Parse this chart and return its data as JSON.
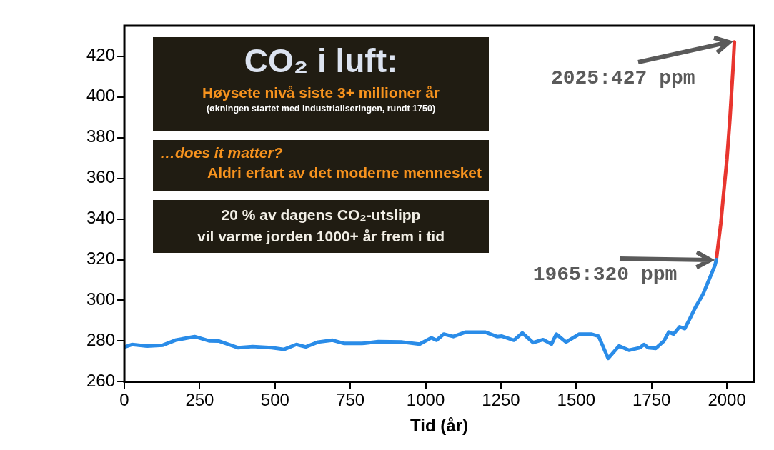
{
  "chart_data": {
    "type": "line",
    "title": "CO₂ i luft:",
    "subtitle": "Høysete nivå siste 3+ millioner år",
    "xlabel": "Tid (år)",
    "annotations": [
      "(økningen startet med industrialiseringen, rundt 1750)",
      "…does it matter?",
      "Aldri erfart av det moderne mennesket",
      "20 % av dagens CO₂-utslipp\nvil varme jorden 1000+ år frem i tid",
      {
        "text": "2025:427 ppm",
        "x": 2025,
        "y": 427
      },
      {
        "text": "1965:320 ppm",
        "x": 1965,
        "y": 320
      }
    ],
    "xlim": [
      0,
      2090
    ],
    "xticks": [
      0,
      250,
      500,
      750,
      1000,
      1250,
      1500,
      1750,
      2000
    ],
    "ylim": [
      260,
      435
    ],
    "yticks": [
      260,
      280,
      300,
      320,
      340,
      360,
      380,
      400,
      420
    ],
    "series": [
      {
        "color": "#2a8ce8",
        "x": [
          0,
          25,
          75,
          128,
          169,
          233,
          281,
          313,
          378,
          426,
          489,
          530,
          571,
          602,
          643,
          691,
          730,
          788,
          843,
          923,
          980,
          1019,
          1036,
          1060,
          1092,
          1133,
          1197,
          1237,
          1253,
          1293,
          1321,
          1357,
          1390,
          1418,
          1434,
          1466,
          1510,
          1550,
          1574,
          1606,
          1642,
          1675,
          1711,
          1725,
          1739,
          1764,
          1791,
          1807,
          1823,
          1843,
          1860,
          1875,
          1896,
          1920,
          1944,
          1960,
          1965
        ],
        "values": [
          277,
          278.3,
          277.5,
          278,
          280.4,
          282.2,
          280.1,
          280,
          276.7,
          277.3,
          276.7,
          275.9,
          278.3,
          277.1,
          279.5,
          280.4,
          278.8,
          278.8,
          279.7,
          279.5,
          278.5,
          281.6,
          280.4,
          283.4,
          282.2,
          284.4,
          284.4,
          282.2,
          282.4,
          280.4,
          284,
          279.2,
          280.7,
          278.5,
          283.4,
          279.5,
          283.4,
          283.4,
          282.4,
          271.5,
          277.6,
          275.5,
          276.7,
          278.3,
          276.7,
          276.4,
          280,
          284.4,
          283.4,
          287,
          286.1,
          290.4,
          296.7,
          302.8,
          311.3,
          317,
          320
        ]
      },
      {
        "color": "#e8352e",
        "x": [
          1965,
          1980,
          1990,
          2000,
          2010,
          2020,
          2025
        ],
        "values": [
          320,
          338,
          354,
          369,
          389,
          413,
          427
        ]
      }
    ],
    "legend": false,
    "grid": false
  }
}
